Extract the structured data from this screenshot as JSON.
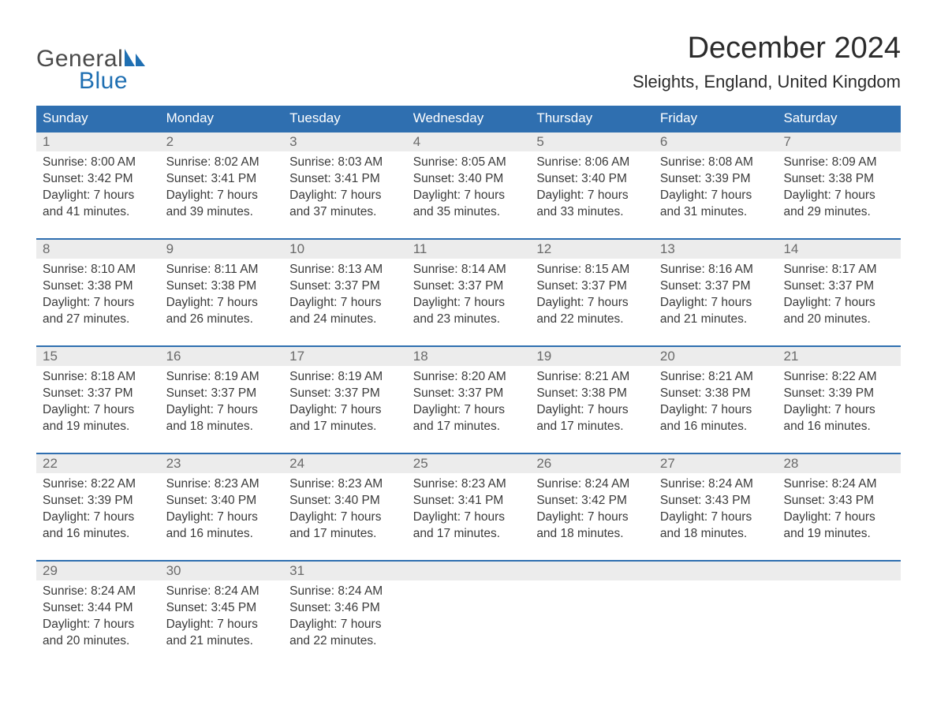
{
  "logo": {
    "word1": "General",
    "word2": "Blue",
    "text_color": "#4a4a4a",
    "accent_color": "#1f6fb2"
  },
  "title": "December 2024",
  "location": "Sleights, England, United Kingdom",
  "colors": {
    "header_bg": "#2f6fb0",
    "header_text": "#ffffff",
    "daynum_bg": "#ececec",
    "daynum_text": "#6a6a6a",
    "body_text": "#3a3a3a",
    "week_border": "#2f6fb0",
    "page_bg": "#ffffff"
  },
  "weekdays": [
    "Sunday",
    "Monday",
    "Tuesday",
    "Wednesday",
    "Thursday",
    "Friday",
    "Saturday"
  ],
  "weeks": [
    {
      "days": [
        {
          "n": "1",
          "sunrise": "Sunrise: 8:00 AM",
          "sunset": "Sunset: 3:42 PM",
          "dl1": "Daylight: 7 hours",
          "dl2": "and 41 minutes."
        },
        {
          "n": "2",
          "sunrise": "Sunrise: 8:02 AM",
          "sunset": "Sunset: 3:41 PM",
          "dl1": "Daylight: 7 hours",
          "dl2": "and 39 minutes."
        },
        {
          "n": "3",
          "sunrise": "Sunrise: 8:03 AM",
          "sunset": "Sunset: 3:41 PM",
          "dl1": "Daylight: 7 hours",
          "dl2": "and 37 minutes."
        },
        {
          "n": "4",
          "sunrise": "Sunrise: 8:05 AM",
          "sunset": "Sunset: 3:40 PM",
          "dl1": "Daylight: 7 hours",
          "dl2": "and 35 minutes."
        },
        {
          "n": "5",
          "sunrise": "Sunrise: 8:06 AM",
          "sunset": "Sunset: 3:40 PM",
          "dl1": "Daylight: 7 hours",
          "dl2": "and 33 minutes."
        },
        {
          "n": "6",
          "sunrise": "Sunrise: 8:08 AM",
          "sunset": "Sunset: 3:39 PM",
          "dl1": "Daylight: 7 hours",
          "dl2": "and 31 minutes."
        },
        {
          "n": "7",
          "sunrise": "Sunrise: 8:09 AM",
          "sunset": "Sunset: 3:38 PM",
          "dl1": "Daylight: 7 hours",
          "dl2": "and 29 minutes."
        }
      ]
    },
    {
      "days": [
        {
          "n": "8",
          "sunrise": "Sunrise: 8:10 AM",
          "sunset": "Sunset: 3:38 PM",
          "dl1": "Daylight: 7 hours",
          "dl2": "and 27 minutes."
        },
        {
          "n": "9",
          "sunrise": "Sunrise: 8:11 AM",
          "sunset": "Sunset: 3:38 PM",
          "dl1": "Daylight: 7 hours",
          "dl2": "and 26 minutes."
        },
        {
          "n": "10",
          "sunrise": "Sunrise: 8:13 AM",
          "sunset": "Sunset: 3:37 PM",
          "dl1": "Daylight: 7 hours",
          "dl2": "and 24 minutes."
        },
        {
          "n": "11",
          "sunrise": "Sunrise: 8:14 AM",
          "sunset": "Sunset: 3:37 PM",
          "dl1": "Daylight: 7 hours",
          "dl2": "and 23 minutes."
        },
        {
          "n": "12",
          "sunrise": "Sunrise: 8:15 AM",
          "sunset": "Sunset: 3:37 PM",
          "dl1": "Daylight: 7 hours",
          "dl2": "and 22 minutes."
        },
        {
          "n": "13",
          "sunrise": "Sunrise: 8:16 AM",
          "sunset": "Sunset: 3:37 PM",
          "dl1": "Daylight: 7 hours",
          "dl2": "and 21 minutes."
        },
        {
          "n": "14",
          "sunrise": "Sunrise: 8:17 AM",
          "sunset": "Sunset: 3:37 PM",
          "dl1": "Daylight: 7 hours",
          "dl2": "and 20 minutes."
        }
      ]
    },
    {
      "days": [
        {
          "n": "15",
          "sunrise": "Sunrise: 8:18 AM",
          "sunset": "Sunset: 3:37 PM",
          "dl1": "Daylight: 7 hours",
          "dl2": "and 19 minutes."
        },
        {
          "n": "16",
          "sunrise": "Sunrise: 8:19 AM",
          "sunset": "Sunset: 3:37 PM",
          "dl1": "Daylight: 7 hours",
          "dl2": "and 18 minutes."
        },
        {
          "n": "17",
          "sunrise": "Sunrise: 8:19 AM",
          "sunset": "Sunset: 3:37 PM",
          "dl1": "Daylight: 7 hours",
          "dl2": "and 17 minutes."
        },
        {
          "n": "18",
          "sunrise": "Sunrise: 8:20 AM",
          "sunset": "Sunset: 3:37 PM",
          "dl1": "Daylight: 7 hours",
          "dl2": "and 17 minutes."
        },
        {
          "n": "19",
          "sunrise": "Sunrise: 8:21 AM",
          "sunset": "Sunset: 3:38 PM",
          "dl1": "Daylight: 7 hours",
          "dl2": "and 17 minutes."
        },
        {
          "n": "20",
          "sunrise": "Sunrise: 8:21 AM",
          "sunset": "Sunset: 3:38 PM",
          "dl1": "Daylight: 7 hours",
          "dl2": "and 16 minutes."
        },
        {
          "n": "21",
          "sunrise": "Sunrise: 8:22 AM",
          "sunset": "Sunset: 3:39 PM",
          "dl1": "Daylight: 7 hours",
          "dl2": "and 16 minutes."
        }
      ]
    },
    {
      "days": [
        {
          "n": "22",
          "sunrise": "Sunrise: 8:22 AM",
          "sunset": "Sunset: 3:39 PM",
          "dl1": "Daylight: 7 hours",
          "dl2": "and 16 minutes."
        },
        {
          "n": "23",
          "sunrise": "Sunrise: 8:23 AM",
          "sunset": "Sunset: 3:40 PM",
          "dl1": "Daylight: 7 hours",
          "dl2": "and 16 minutes."
        },
        {
          "n": "24",
          "sunrise": "Sunrise: 8:23 AM",
          "sunset": "Sunset: 3:40 PM",
          "dl1": "Daylight: 7 hours",
          "dl2": "and 17 minutes."
        },
        {
          "n": "25",
          "sunrise": "Sunrise: 8:23 AM",
          "sunset": "Sunset: 3:41 PM",
          "dl1": "Daylight: 7 hours",
          "dl2": "and 17 minutes."
        },
        {
          "n": "26",
          "sunrise": "Sunrise: 8:24 AM",
          "sunset": "Sunset: 3:42 PM",
          "dl1": "Daylight: 7 hours",
          "dl2": "and 18 minutes."
        },
        {
          "n": "27",
          "sunrise": "Sunrise: 8:24 AM",
          "sunset": "Sunset: 3:43 PM",
          "dl1": "Daylight: 7 hours",
          "dl2": "and 18 minutes."
        },
        {
          "n": "28",
          "sunrise": "Sunrise: 8:24 AM",
          "sunset": "Sunset: 3:43 PM",
          "dl1": "Daylight: 7 hours",
          "dl2": "and 19 minutes."
        }
      ]
    },
    {
      "days": [
        {
          "n": "29",
          "sunrise": "Sunrise: 8:24 AM",
          "sunset": "Sunset: 3:44 PM",
          "dl1": "Daylight: 7 hours",
          "dl2": "and 20 minutes."
        },
        {
          "n": "30",
          "sunrise": "Sunrise: 8:24 AM",
          "sunset": "Sunset: 3:45 PM",
          "dl1": "Daylight: 7 hours",
          "dl2": "and 21 minutes."
        },
        {
          "n": "31",
          "sunrise": "Sunrise: 8:24 AM",
          "sunset": "Sunset: 3:46 PM",
          "dl1": "Daylight: 7 hours",
          "dl2": "and 22 minutes."
        },
        {
          "n": "",
          "sunrise": "",
          "sunset": "",
          "dl1": "",
          "dl2": ""
        },
        {
          "n": "",
          "sunrise": "",
          "sunset": "",
          "dl1": "",
          "dl2": ""
        },
        {
          "n": "",
          "sunrise": "",
          "sunset": "",
          "dl1": "",
          "dl2": ""
        },
        {
          "n": "",
          "sunrise": "",
          "sunset": "",
          "dl1": "",
          "dl2": ""
        }
      ]
    }
  ]
}
